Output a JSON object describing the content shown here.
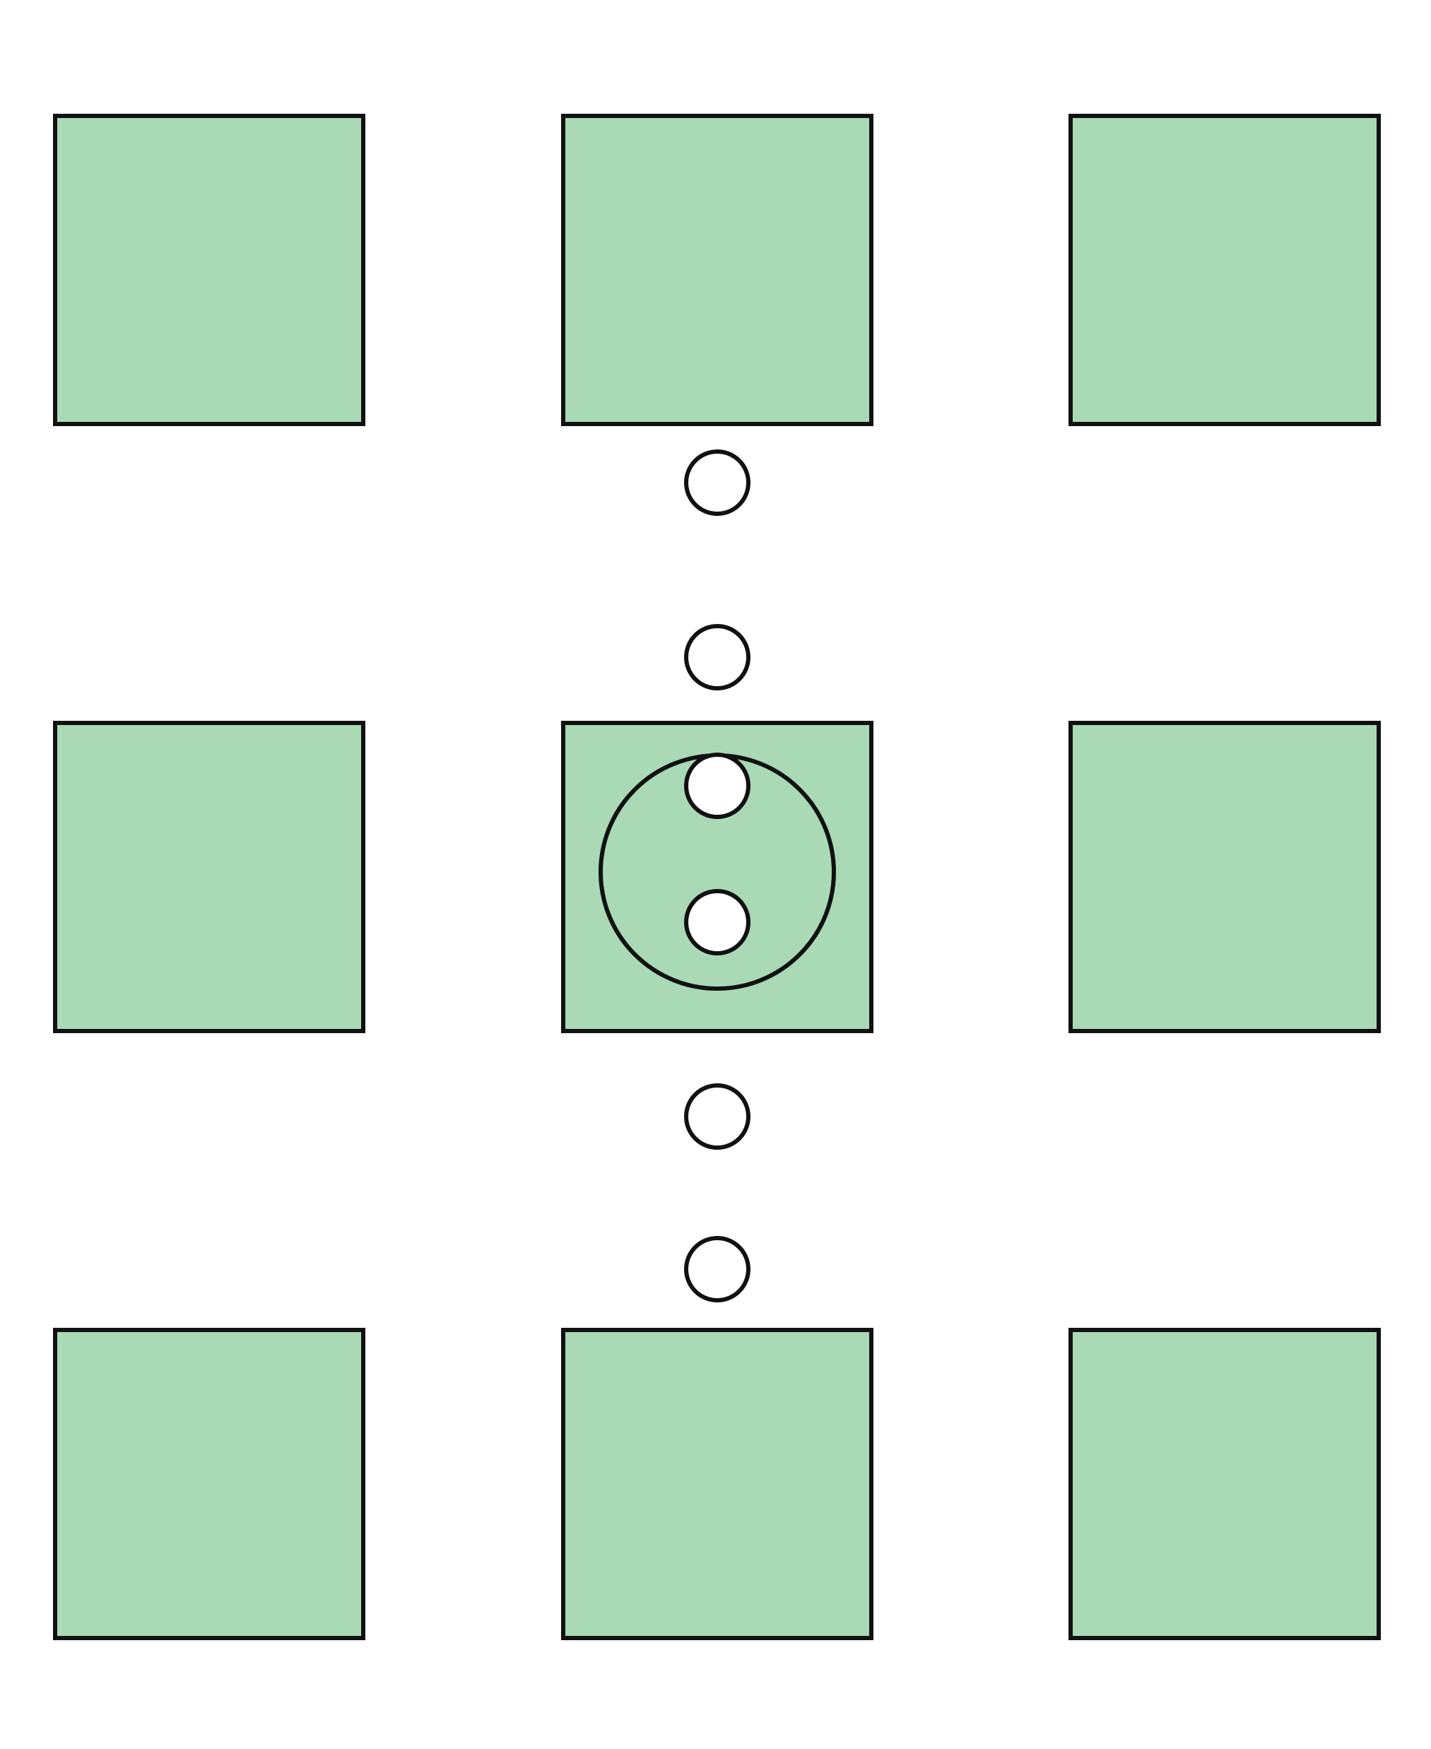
{
  "colors": {
    "background": "#ffffff",
    "square_fill": "#aad9b5",
    "stroke": "#111111",
    "dot_fill": "#ffffff",
    "big_circle_fill": "#aad9b5"
  },
  "grid": {
    "rows": 3,
    "cols": 3
  },
  "squares": [
    {
      "row": 0,
      "col": 0,
      "name": "square-top-left"
    },
    {
      "row": 0,
      "col": 1,
      "name": "square-top-center"
    },
    {
      "row": 0,
      "col": 2,
      "name": "square-top-right"
    },
    {
      "row": 1,
      "col": 0,
      "name": "square-middle-left"
    },
    {
      "row": 1,
      "col": 1,
      "name": "square-center"
    },
    {
      "row": 1,
      "col": 2,
      "name": "square-middle-right"
    },
    {
      "row": 2,
      "col": 0,
      "name": "square-bottom-left"
    },
    {
      "row": 2,
      "col": 1,
      "name": "square-bottom-center"
    },
    {
      "row": 2,
      "col": 2,
      "name": "square-bottom-right"
    }
  ],
  "center_circle": {
    "present": true,
    "inner_dot_count": 2
  },
  "connector_dots": {
    "between_top_and_center": 2,
    "between_center_and_bottom": 2
  }
}
